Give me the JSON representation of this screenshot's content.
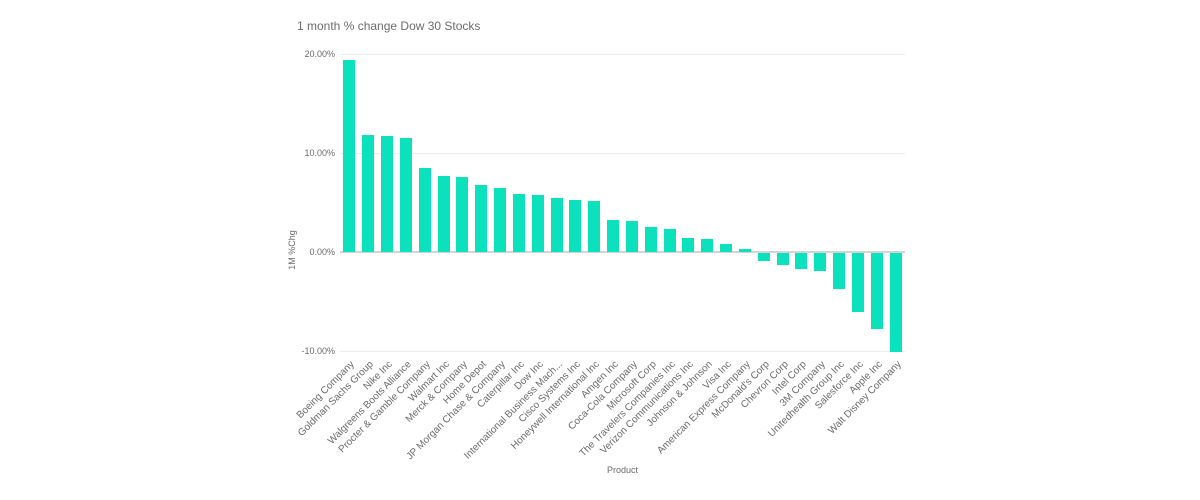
{
  "chart_data": {
    "type": "bar",
    "title": "1 month % change Dow 30 Stocks",
    "xlabel": "Product",
    "ylabel": "1M %Chg",
    "bar_color": "#0be2bd",
    "grid_color": "#ededed",
    "zero_line_color": "#d4d4d4",
    "text_color": "#696969",
    "grid": true,
    "legend": "none",
    "ylim": [
      -10.5,
      21
    ],
    "yticks": [
      20,
      10,
      0,
      -10
    ],
    "ytick_labels": [
      "20.00%",
      "10.00%",
      "0.00%",
      "-10.00%"
    ],
    "categories": [
      "Boeing Company",
      "Goldman Sachs Group",
      "Nike Inc",
      "Walgreens Boots Alliance",
      "Procter & Gamble Company",
      "Walmart Inc",
      "Merck & Company",
      "Home Depot",
      "JP Morgan Chase & Company",
      "Caterpillar Inc",
      "Dow Inc",
      "International Business Mach...",
      "Cisco Systems Inc",
      "Honeywell International Inc",
      "Amgen Inc",
      "Coca-Cola Company",
      "Microsoft Corp",
      "The Travelers Companies Inc",
      "Verizon Communications Inc",
      "Johnson & Johnson",
      "Visa Inc",
      "American Express Company",
      "McDonald's Corp",
      "Chevron Corp",
      "Intel Corp",
      "3M Company",
      "Unitedhealth Group Inc",
      "Salesforce Inc",
      "Apple Inc",
      "Walt Disney Company"
    ],
    "values": [
      19.4,
      11.8,
      11.7,
      11.5,
      8.5,
      7.7,
      7.6,
      6.8,
      6.5,
      5.9,
      5.8,
      5.5,
      5.3,
      5.2,
      3.2,
      3.1,
      2.5,
      2.3,
      1.4,
      1.3,
      0.8,
      0.3,
      -0.8,
      -1.2,
      -1.6,
      -1.8,
      -3.6,
      -6.0,
      -7.7,
      -10.0
    ]
  }
}
